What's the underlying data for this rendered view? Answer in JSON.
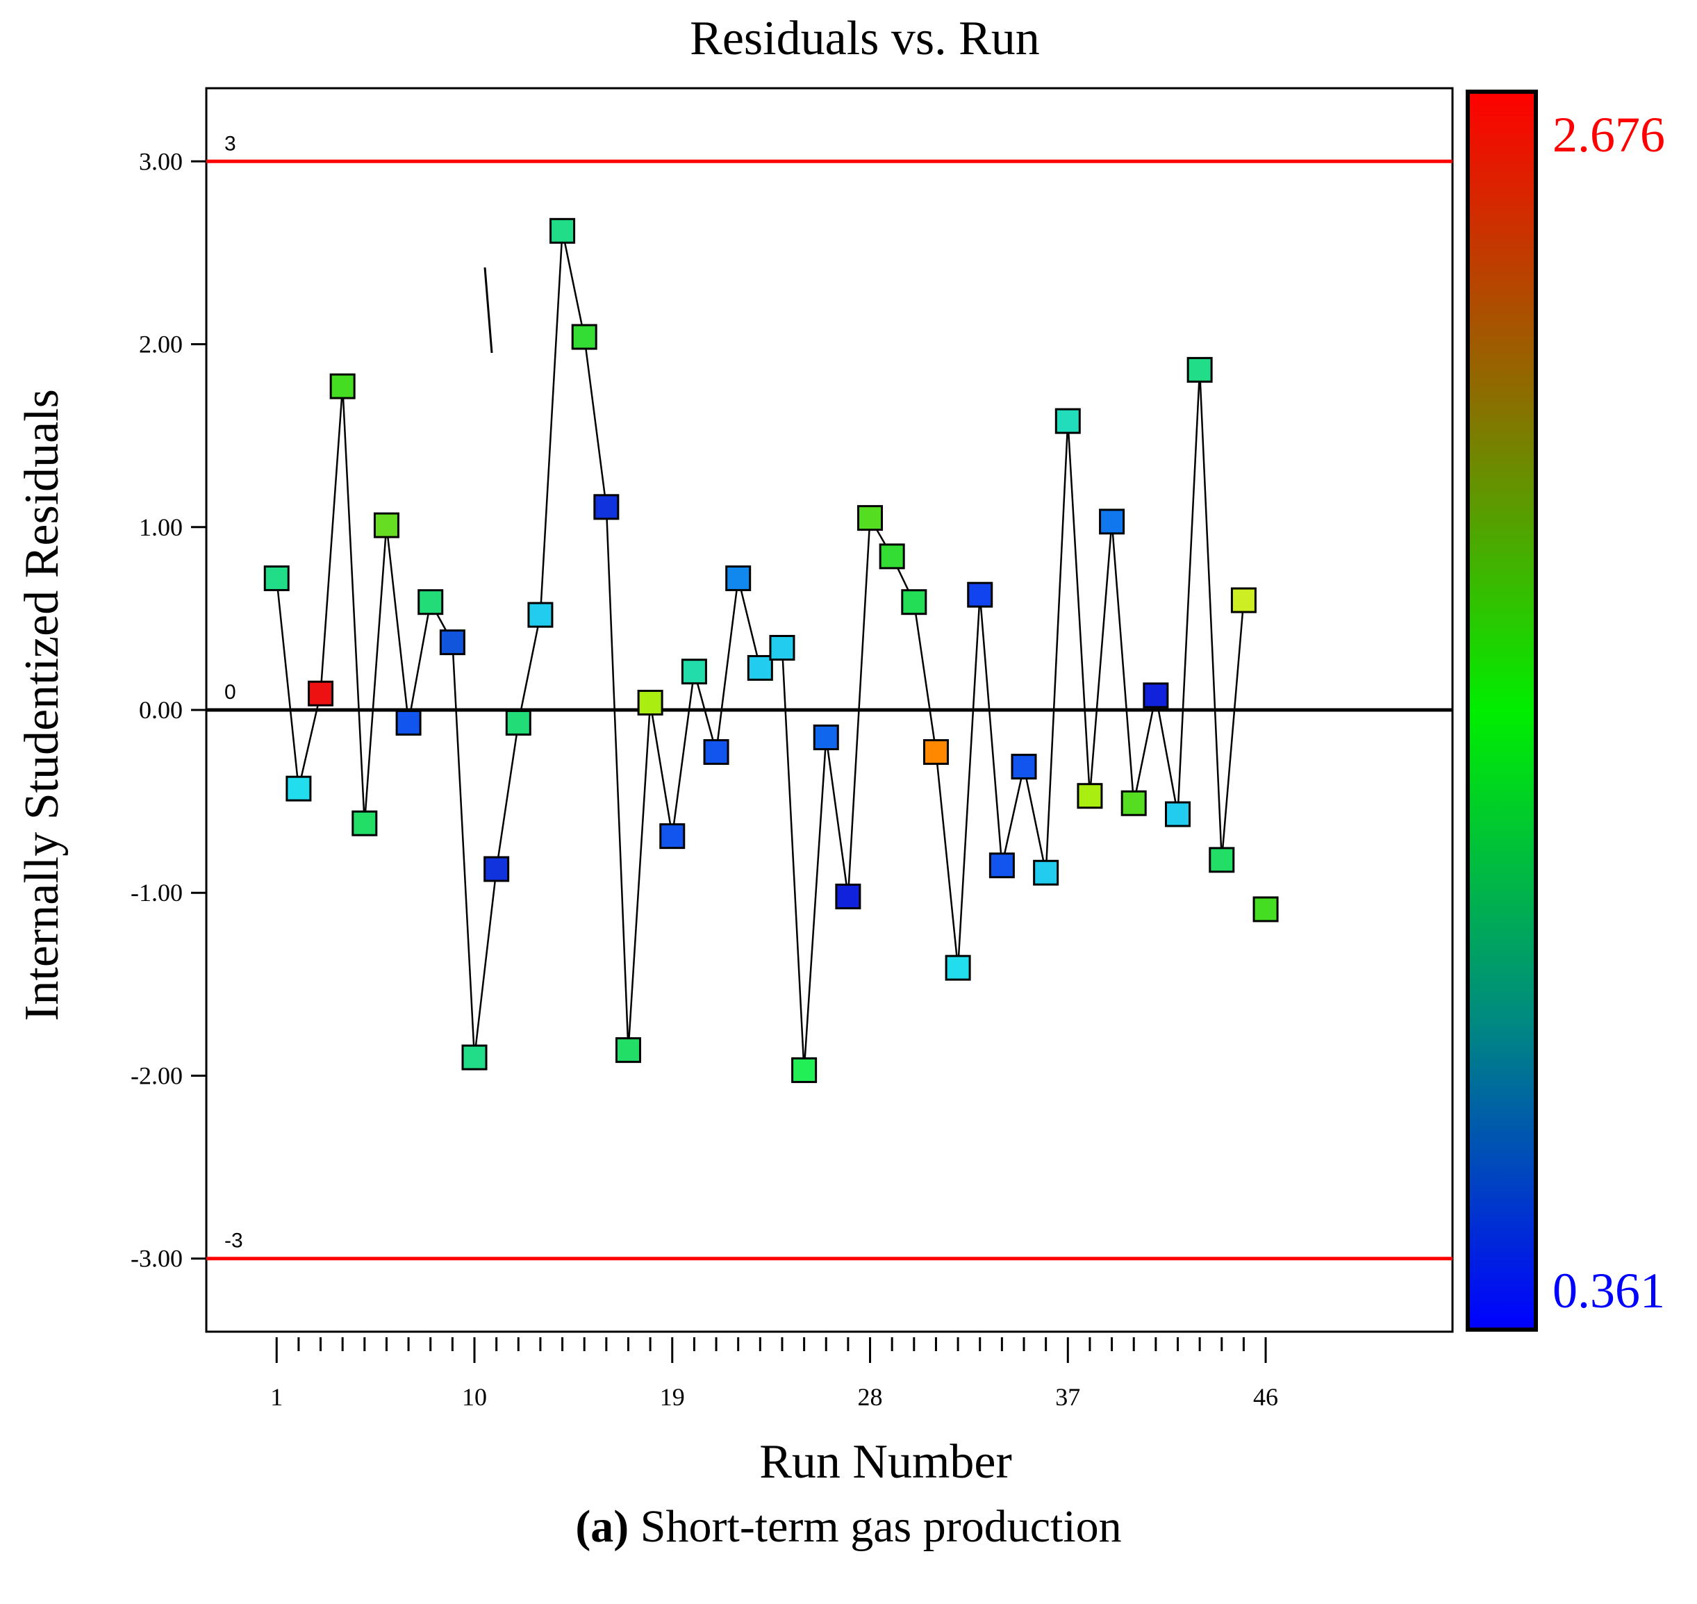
{
  "chart_data": {
    "type": "scatter",
    "title": "Residuals vs. Run",
    "xlabel": "Run Number",
    "ylabel": "Internally Studentized Residuals",
    "xlim": [
      -2.2,
      54.5
    ],
    "ylim": [
      -3.4,
      3.4
    ],
    "x_ticks": [
      1,
      10,
      19,
      28,
      37,
      46
    ],
    "y_ticks": [
      {
        "value": 3,
        "label": "3.00"
      },
      {
        "value": 2,
        "label": "2.00"
      },
      {
        "value": 1,
        "label": "1.00"
      },
      {
        "value": 0,
        "label": "0.00"
      },
      {
        "value": -1,
        "label": "-1.00"
      },
      {
        "value": -2,
        "label": "-2.00"
      },
      {
        "value": -3,
        "label": "-3.00"
      }
    ],
    "reference_lines": [
      {
        "value": 3,
        "label": "3",
        "color": "#ff0000"
      },
      {
        "value": 0,
        "label": "0",
        "color": "#000000"
      },
      {
        "value": -3,
        "label": "-3",
        "color": "#ff0000"
      }
    ],
    "colorbar": {
      "max_label": "2.676",
      "min_label": "0.361",
      "max_color": "#ff0000",
      "min_color": "#0000ff"
    },
    "points": [
      {
        "run": 1,
        "residual": 0.72,
        "color": "#22dd88"
      },
      {
        "run": 2,
        "residual": -0.43,
        "color": "#22ddee"
      },
      {
        "run": 3,
        "residual": 0.09,
        "color": "#ee1111"
      },
      {
        "run": 4,
        "residual": 1.77,
        "color": "#44dd22"
      },
      {
        "run": 5,
        "residual": -0.62,
        "color": "#22dd66"
      },
      {
        "run": 6,
        "residual": 1.01,
        "color": "#66dd22"
      },
      {
        "run": 7,
        "residual": -0.07,
        "color": "#1155ee"
      },
      {
        "run": 8,
        "residual": 0.59,
        "color": "#22dd77"
      },
      {
        "run": 9,
        "residual": 0.37,
        "color": "#1155dd"
      },
      {
        "run": 10,
        "residual": -1.9,
        "color": "#22dd88"
      },
      {
        "run": 11,
        "residual": -0.87,
        "color": "#1133dd"
      },
      {
        "run": 12,
        "residual": -0.07,
        "color": "#22dd77"
      },
      {
        "run": 13,
        "residual": 0.52,
        "color": "#22ccee"
      },
      {
        "run": 14,
        "residual": 2.62,
        "color": "#22dd88"
      },
      {
        "run": 15,
        "residual": 2.04,
        "color": "#33dd33"
      },
      {
        "run": 16,
        "residual": 1.11,
        "color": "#1133dd"
      },
      {
        "run": 17,
        "residual": -1.86,
        "color": "#22dd66"
      },
      {
        "run": 18,
        "residual": 0.04,
        "color": "#aaee11"
      },
      {
        "run": 19,
        "residual": -0.69,
        "color": "#1155ee"
      },
      {
        "run": 20,
        "residual": 0.21,
        "color": "#22ddaa"
      },
      {
        "run": 21,
        "residual": -0.23,
        "color": "#1155ee"
      },
      {
        "run": 22,
        "residual": 0.72,
        "color": "#1188ee"
      },
      {
        "run": 23,
        "residual": 0.23,
        "color": "#22ccee"
      },
      {
        "run": 24,
        "residual": 0.34,
        "color": "#22ccee"
      },
      {
        "run": 25,
        "residual": -1.97,
        "color": "#22ee55"
      },
      {
        "run": 26,
        "residual": -0.15,
        "color": "#1166ee"
      },
      {
        "run": 27,
        "residual": -1.02,
        "color": "#1122dd"
      },
      {
        "run": 28,
        "residual": 1.05,
        "color": "#55dd22"
      },
      {
        "run": 29,
        "residual": 0.84,
        "color": "#33dd33"
      },
      {
        "run": 30,
        "residual": 0.59,
        "color": "#22dd55"
      },
      {
        "run": 31,
        "residual": -0.23,
        "color": "#ff8800"
      },
      {
        "run": 32,
        "residual": -1.41,
        "color": "#22ddee"
      },
      {
        "run": 33,
        "residual": 0.63,
        "color": "#1144ee"
      },
      {
        "run": 34,
        "residual": -0.85,
        "color": "#1155ee"
      },
      {
        "run": 35,
        "residual": -0.31,
        "color": "#1155ee"
      },
      {
        "run": 36,
        "residual": -0.89,
        "color": "#22ccee"
      },
      {
        "run": 37,
        "residual": 1.58,
        "color": "#22ddbb"
      },
      {
        "run": 38,
        "residual": -0.47,
        "color": "#aaee11"
      },
      {
        "run": 39,
        "residual": 1.03,
        "color": "#1177ee"
      },
      {
        "run": 40,
        "residual": -0.51,
        "color": "#55dd22"
      },
      {
        "run": 41,
        "residual": 0.08,
        "color": "#1122dd"
      },
      {
        "run": 42,
        "residual": -0.57,
        "color": "#22ccee"
      },
      {
        "run": 43,
        "residual": 1.86,
        "color": "#22dd88"
      },
      {
        "run": 44,
        "residual": -0.82,
        "color": "#22dd66"
      },
      {
        "run": 45,
        "residual": 0.6,
        "color": "#ccee22"
      },
      {
        "run": 46,
        "residual": -1.09,
        "color": "#44dd22"
      }
    ]
  },
  "caption": {
    "letter": "(a)",
    "text": "Short-term gas production"
  }
}
